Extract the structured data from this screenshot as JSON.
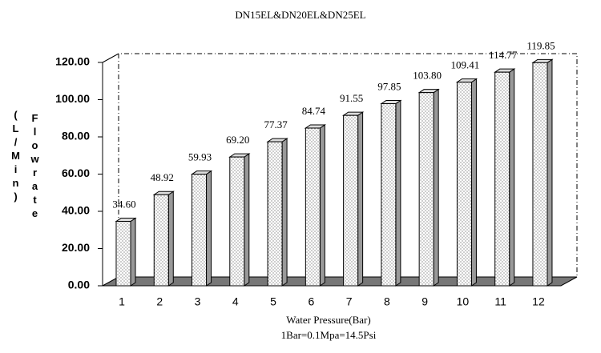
{
  "chart_data": {
    "type": "bar3d",
    "title": "DN15EL&DN20EL&DN25EL",
    "ylabel": "Flowrate",
    "yunit": "(L/Min)",
    "xlabel": "Water Pressure(Bar)",
    "note": "1Bar=0.1Mpa=14.5Psi",
    "categories": [
      "1",
      "2",
      "3",
      "4",
      "5",
      "6",
      "7",
      "8",
      "9",
      "10",
      "11",
      "12"
    ],
    "values": [
      34.6,
      48.92,
      59.93,
      69.2,
      77.37,
      84.74,
      91.55,
      97.85,
      103.8,
      109.41,
      114.77,
      119.85
    ],
    "value_labels": [
      "34.60",
      "48.92",
      "59.93",
      "69.20",
      "77.37",
      "84.74",
      "91.55",
      "97.85",
      "103.80",
      "109.41",
      "114.77",
      "119.85"
    ],
    "ylim": [
      0,
      120
    ],
    "yticks": [
      {
        "value": 0,
        "label": "0.00"
      },
      {
        "value": 20,
        "label": "20.00"
      },
      {
        "value": 40,
        "label": "40.00"
      },
      {
        "value": 60,
        "label": "60.00"
      },
      {
        "value": 80,
        "label": "80.00"
      },
      {
        "value": 100,
        "label": "100.00"
      },
      {
        "value": 120,
        "label": "120.00"
      }
    ],
    "color": "#ffffff"
  }
}
